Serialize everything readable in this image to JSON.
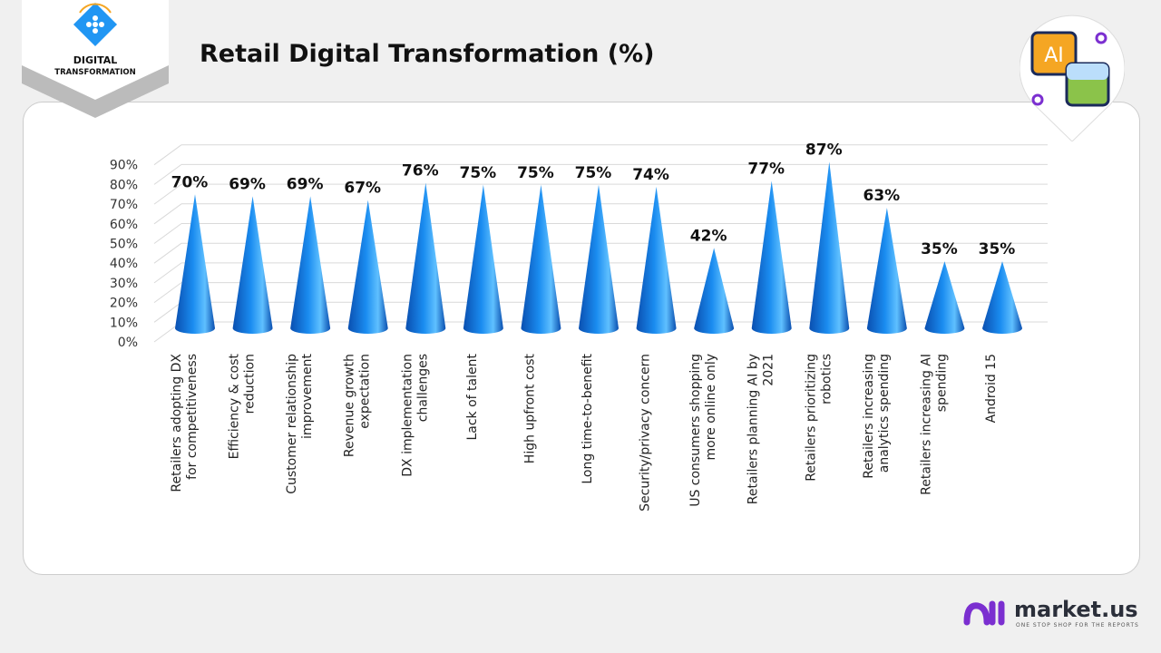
{
  "header": {
    "title": "Retail Digital Transformation (%)",
    "badge_line1": "DIGITAL",
    "badge_line2": "TRANSFORMATION",
    "ai_icon_text": "AI"
  },
  "footer": {
    "brand": "market.us",
    "tagline": "ONE STOP SHOP FOR THE REPORTS"
  },
  "colors": {
    "cone": "#1a8cf0",
    "cone_dark": "#0a4fb0",
    "brand_purple": "#7b2fd0"
  },
  "chart_data": {
    "type": "bar",
    "bar_shape": "3d-cone",
    "title": "Retail Digital Transformation (%)",
    "categories": [
      "Retailers adopting DX for competitiveness",
      "Efficiency & cost reduction",
      "Customer relationship improvement",
      "Revenue growth expectation",
      "DX implementation challenges",
      "Lack of talent",
      "High upfront cost",
      "Long time-to-benefit",
      "Security/privacy concern",
      "US consumers shopping more online only",
      "Retailers planning AI by 2021",
      "Retailers prioritizing robotics",
      "Retailers increasing analytics spending",
      "Retailers increasing AI spending",
      "Android 15"
    ],
    "values": [
      70,
      69,
      69,
      67,
      76,
      75,
      75,
      75,
      74,
      42,
      77,
      87,
      63,
      35,
      35
    ],
    "data_labels": [
      "70%",
      "69%",
      "69%",
      "67%",
      "76%",
      "75%",
      "75%",
      "75%",
      "74%",
      "42%",
      "77%",
      "87%",
      "63%",
      "35%",
      "35%"
    ],
    "yticks": [
      "0%",
      "10%",
      "20%",
      "30%",
      "40%",
      "50%",
      "60%",
      "70%",
      "80%",
      "90%"
    ],
    "ylim": [
      0,
      90
    ],
    "grid": true,
    "legend": "none"
  }
}
